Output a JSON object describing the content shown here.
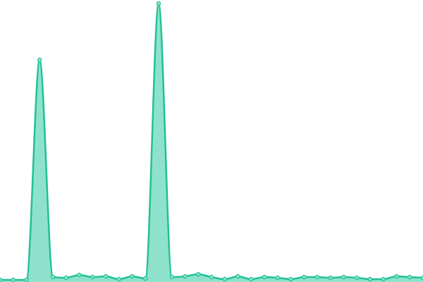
{
  "chart_data": {
    "type": "area",
    "values": [
      3,
      3,
      3,
      315,
      7,
      6,
      10,
      7,
      8,
      4,
      8,
      5,
      395,
      7,
      8,
      11,
      7,
      4,
      8,
      4,
      7,
      6,
      4,
      7,
      7,
      6,
      7,
      6,
      4,
      4,
      8,
      7,
      6
    ],
    "ylim": [
      0,
      400
    ],
    "color": "#20c197",
    "fill": "#8ee2cb",
    "marker_fill": "#8ee2cb"
  }
}
